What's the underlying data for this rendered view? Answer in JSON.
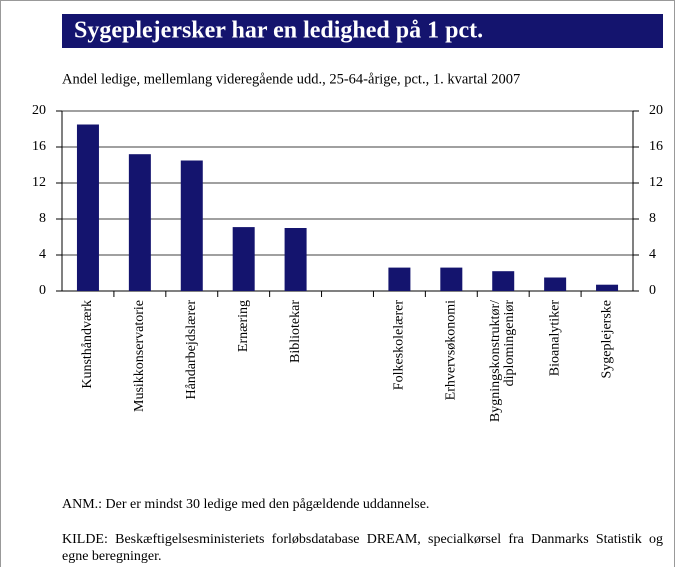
{
  "chart_data": {
    "type": "bar",
    "title": "Sygeplejersker har en ledighed på 1 pct.",
    "subtitle": "Andel ledige, mellemlang videregående udd., 25-64-årige, pct., 1. kvartal 2007",
    "categories": [
      "Kunsthåndværk",
      "Musikkonservatorie",
      "Håndarbejdslærer",
      "Ernæring",
      "Bibliotekar",
      null,
      "Folkeskolelærer",
      "Erhvervsøkonomi",
      "Bygningskonstruktør/\ndiplomingeniør",
      "Bioanalytiker",
      "Sygeplejerske"
    ],
    "values": [
      18.5,
      15.2,
      14.5,
      7.1,
      7.0,
      null,
      2.6,
      2.6,
      2.2,
      1.5,
      0.7
    ],
    "color": "#14146e",
    "ylim": [
      0,
      20
    ],
    "yticks": [
      0,
      4,
      8,
      12,
      16,
      20
    ],
    "y2lim": [
      0,
      20
    ],
    "y2ticks": [
      0,
      4,
      8,
      12,
      16,
      20
    ],
    "grid": true,
    "notes": [
      "ANM.: Der er mindst 30 ledige med den pågældende uddannelse.",
      "KILDE: Beskæftigelsesministeriets forløbsdatabase DREAM, specialkørsel fra Danmarks Statistik og egne beregninger."
    ]
  }
}
